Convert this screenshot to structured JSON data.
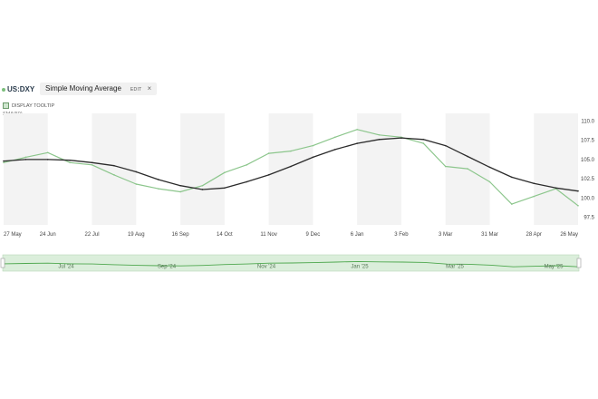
{
  "header": {
    "symbol": "US:DXY",
    "study_name": "Simple Moving Average",
    "edit_label": "EDIT",
    "close_glyph": "×"
  },
  "tooltip_toggle": {
    "label": "DISPLAY TOOLTIP",
    "checked": true
  },
  "study_short_label": "SMA(50)",
  "colors": {
    "price_line": "#8cc68c",
    "sma_line": "#2b2b2b",
    "grid_band": "#f3f3f3",
    "navigator_fill": "#dbeedb",
    "navigator_line": "#4fa84f"
  },
  "chart_data": {
    "type": "line",
    "x": [
      "2024-05-27",
      "2024-06-10",
      "2024-06-24",
      "2024-07-08",
      "2024-07-22",
      "2024-08-05",
      "2024-08-19",
      "2024-09-02",
      "2024-09-16",
      "2024-09-30",
      "2024-10-14",
      "2024-10-28",
      "2024-11-11",
      "2024-11-25",
      "2024-12-09",
      "2024-12-23",
      "2025-01-06",
      "2025-01-20",
      "2025-02-03",
      "2025-02-17",
      "2025-03-03",
      "2025-03-17",
      "2025-03-31",
      "2025-04-14",
      "2025-04-28",
      "2025-05-12",
      "2025-05-26"
    ],
    "series": [
      {
        "values": [
          104.6,
          105.3,
          105.9,
          104.6,
          104.3,
          103.0,
          101.8,
          101.2,
          100.8,
          101.6,
          103.3,
          104.3,
          105.8,
          106.1,
          106.8,
          107.9,
          108.9,
          108.2,
          107.9,
          107.1,
          104.1,
          103.8,
          102.1,
          99.2,
          100.2,
          101.2,
          99.0
        ]
      },
      {
        "values": [
          104.8,
          105.0,
          105.0,
          104.9,
          104.6,
          104.2,
          103.4,
          102.4,
          101.6,
          101.1,
          101.3,
          102.1,
          103.0,
          104.1,
          105.3,
          106.3,
          107.1,
          107.6,
          107.8,
          107.6,
          106.8,
          105.4,
          104.0,
          102.7,
          101.9,
          101.3,
          100.9
        ]
      }
    ],
    "x_tick_labels": [
      "27 May",
      "24 Jun",
      "22 Jul",
      "19 Aug",
      "16 Sep",
      "14 Oct",
      "11 Nov",
      "9 Dec",
      "6 Jan",
      "3 Feb",
      "3 Mar",
      "31 Mar",
      "28 Apr",
      "26 May"
    ],
    "y_ticks": [
      97.5,
      100.0,
      102.5,
      105.0,
      107.5,
      110.0
    ],
    "ylim": [
      96.5,
      111.0
    ],
    "grid": "alternating vertical bands",
    "navigator_labels": [
      "Jul '24",
      "Sep '24",
      "Nov '24",
      "Jan '25",
      "Mar '25",
      "May '25"
    ]
  }
}
